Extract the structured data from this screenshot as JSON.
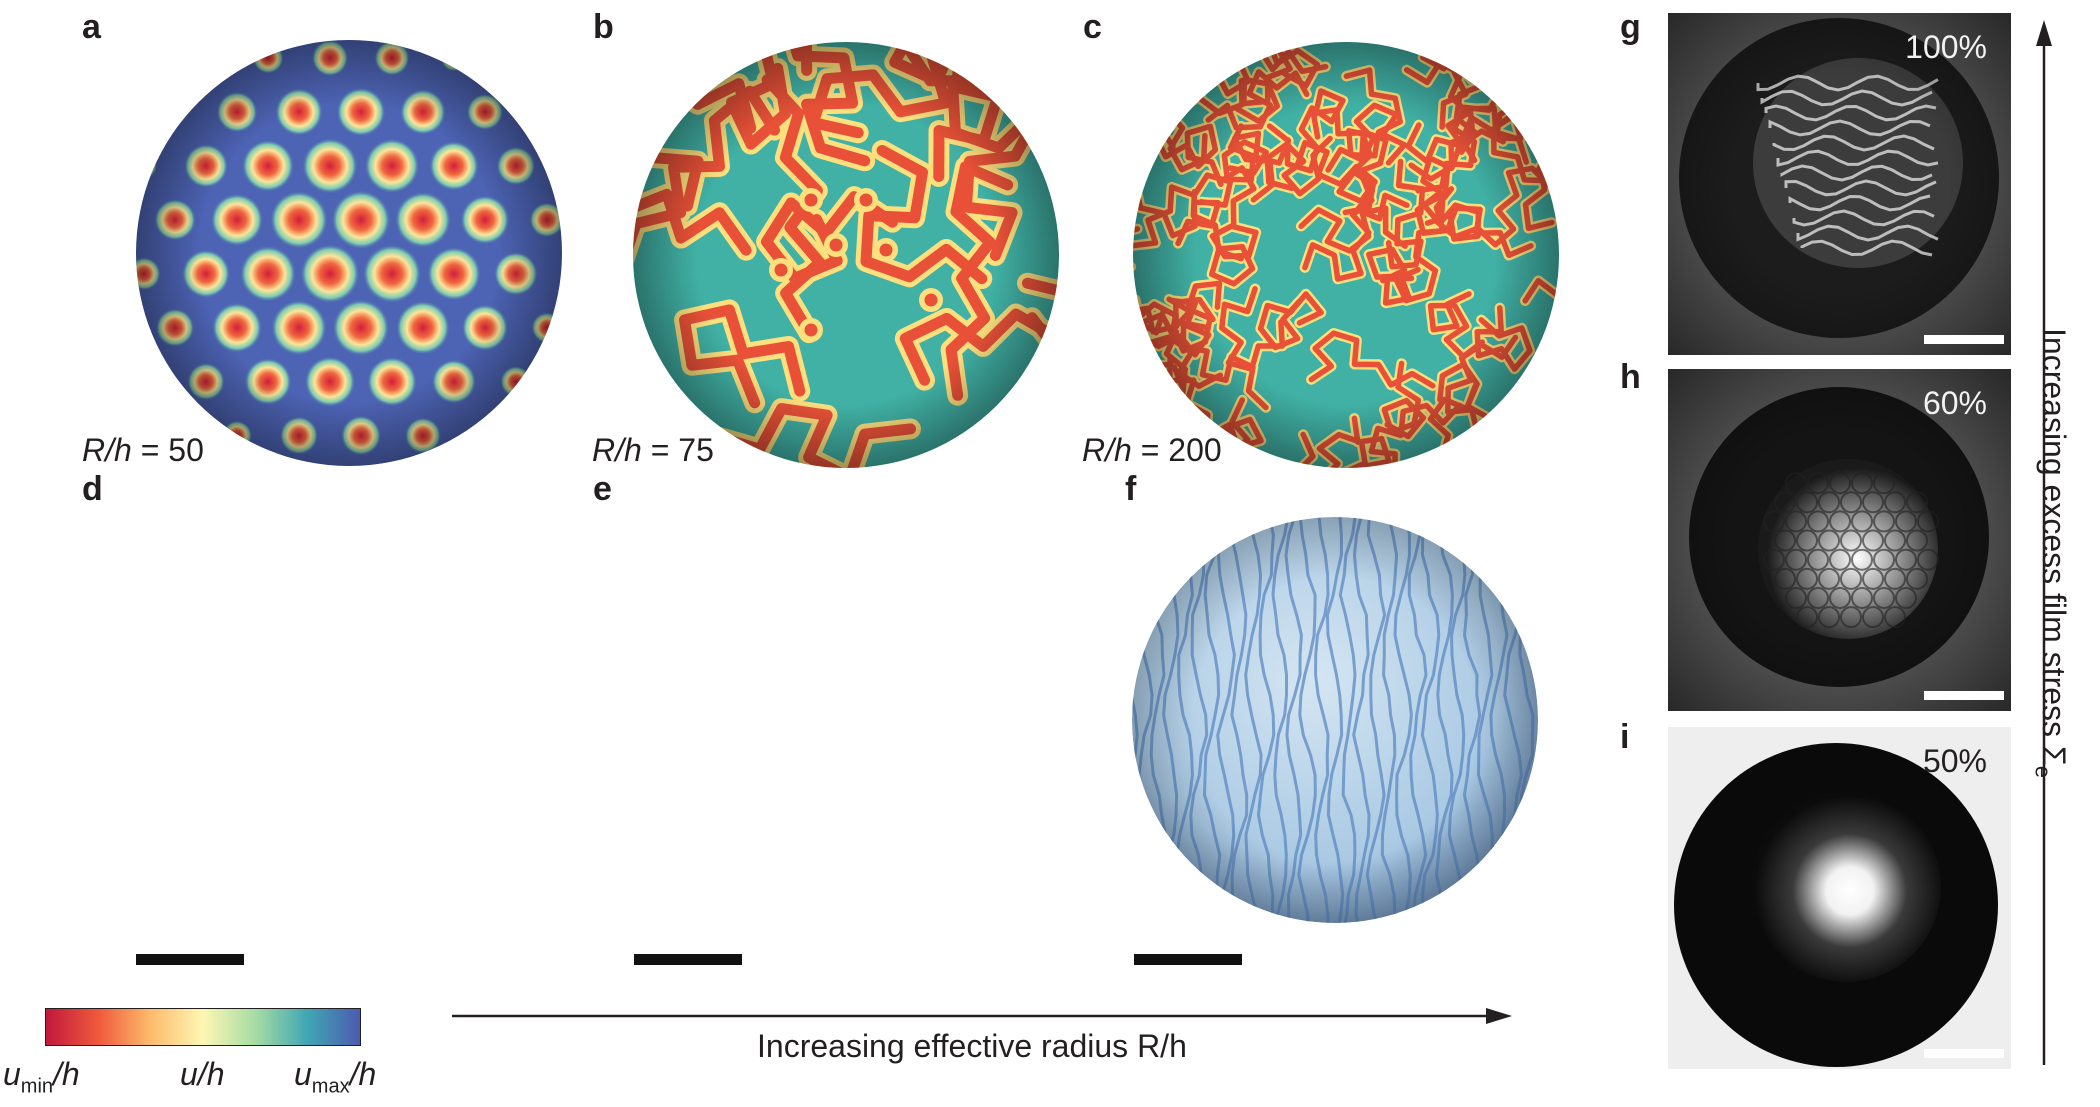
{
  "panels": {
    "a": {
      "letter": "a",
      "rh_prefix": "R/h",
      "rh_value": "= 50"
    },
    "b": {
      "letter": "b",
      "rh_prefix": "R/h",
      "rh_value": "= 75"
    },
    "c": {
      "letter": "c",
      "rh_prefix": "R/h",
      "rh_value": "= 200"
    },
    "d": {
      "letter": "d"
    },
    "e": {
      "letter": "e"
    },
    "f": {
      "letter": "f"
    },
    "g": {
      "letter": "g",
      "percent": "100%"
    },
    "h": {
      "letter": "h",
      "percent": "60%"
    },
    "i": {
      "letter": "i",
      "percent": "50%"
    }
  },
  "colorbar": {
    "min_label": "u",
    "min_sub": "min",
    "min_suffix": "/h",
    "mid_label": "u/h",
    "max_label": "u",
    "max_sub": "max",
    "max_suffix": "/h",
    "colors": [
      "#c1183c",
      "#ef5a3c",
      "#fdbb6c",
      "#fdf7b4",
      "#a6dca4",
      "#3fa6b4",
      "#4c5bb0"
    ]
  },
  "x_axis_label": "Increasing effective radius R/h",
  "y_axis_label": "Increasing excess film stress Σ",
  "y_axis_sub": "e",
  "colors": {
    "text": "#231f20",
    "sphere_base": "#4d63b4",
    "spot_red": "#d7263d",
    "stripe_red": "#e85138",
    "stripe_yellow": "#fde07e",
    "stripe_teal": "#41b1a5",
    "photo_blue": "#9ec3e0"
  }
}
